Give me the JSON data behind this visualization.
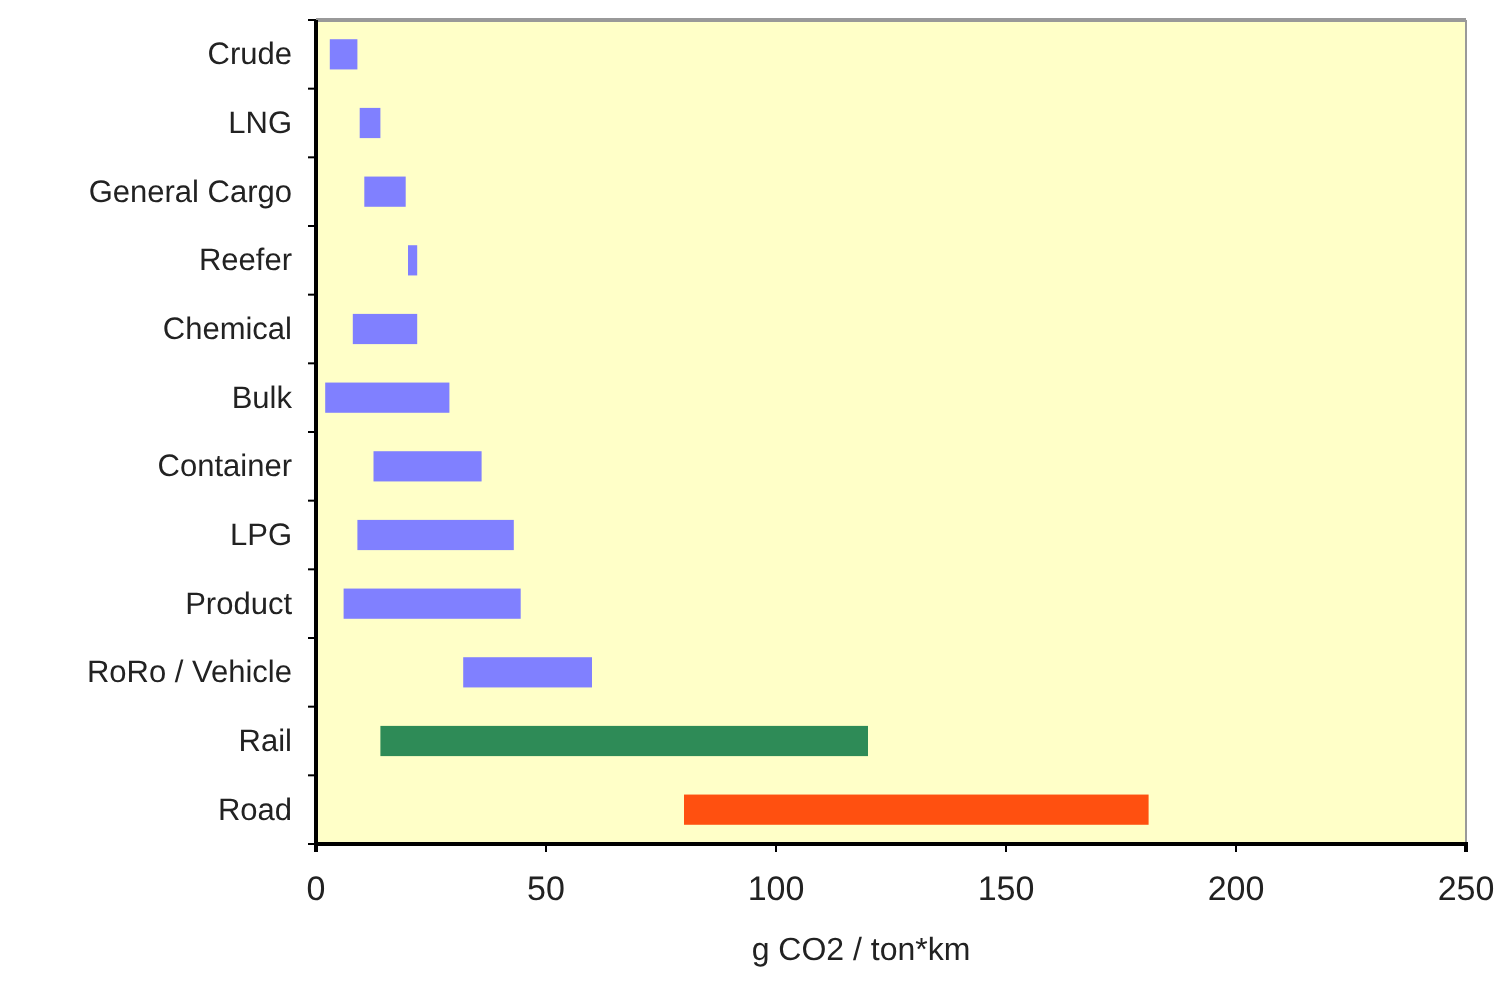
{
  "chart_data": {
    "type": "bar",
    "orientation": "horizontal",
    "xlabel": "g CO2 / ton*km",
    "categories": [
      "Crude",
      "LNG",
      "General Cargo",
      "Reefer",
      "Chemical",
      "Bulk",
      "Container",
      "LPG",
      "Product",
      "RoRo / Vehicle",
      "Rail",
      "Road"
    ],
    "base": [
      3,
      9.5,
      10.5,
      20,
      8,
      2,
      12.5,
      9,
      6,
      32,
      14,
      80
    ],
    "values": [
      6,
      4.5,
      9,
      2,
      14,
      27,
      23.5,
      34,
      38.5,
      28,
      106,
      101
    ],
    "colors": [
      "#8080ff",
      "#8080ff",
      "#8080ff",
      "#8080ff",
      "#8080ff",
      "#8080ff",
      "#8080ff",
      "#8080ff",
      "#8080ff",
      "#8080ff",
      "#2e8b57",
      "#ff5010"
    ],
    "xlim": [
      0,
      250
    ],
    "xticks": [
      0,
      50,
      100,
      150,
      200,
      250
    ]
  }
}
